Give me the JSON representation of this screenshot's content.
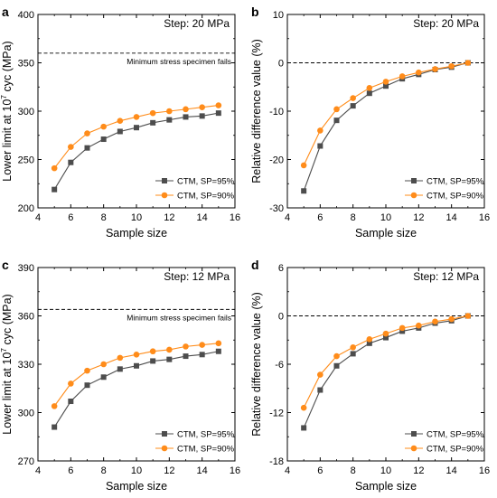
{
  "colors": {
    "series95": "#4d4d4d",
    "series90": "#ff8c1a",
    "axis": "#000000"
  },
  "chart_data": [
    {
      "panel": "a",
      "type": "line",
      "step_label": "Step: 20 MPa",
      "xlabel": "Sample size",
      "ylabel_main": "Lower limit at 10",
      "ylabel_sup": "7",
      "ylabel_tail": " cyc (MPa)",
      "xlim": [
        4,
        16
      ],
      "ylim": [
        200,
        400
      ],
      "xticks": [
        4,
        6,
        8,
        10,
        12,
        14,
        16
      ],
      "yticks": [
        200,
        250,
        300,
        350,
        400
      ],
      "reference_line": {
        "y": 360,
        "label": "Minimum stress specimen fails"
      },
      "x": [
        5,
        6,
        7,
        8,
        9,
        10,
        11,
        12,
        13,
        14,
        15
      ],
      "series": [
        {
          "name": "CTM, SP=95%",
          "marker": "square",
          "values": [
            219,
            247,
            262,
            271,
            279,
            283,
            288,
            291,
            294,
            295,
            298
          ]
        },
        {
          "name": "CTM, SP=90%",
          "marker": "circle",
          "values": [
            241,
            263,
            277,
            284,
            290,
            294,
            298,
            300,
            302,
            304,
            306
          ]
        }
      ],
      "legend": "bottom-right"
    },
    {
      "panel": "b",
      "type": "line",
      "step_label": "Step: 20 MPa",
      "xlabel": "Sample size",
      "ylabel_main": "Relative difference value (%)",
      "ylabel_sup": "",
      "ylabel_tail": "",
      "xlim": [
        4,
        16
      ],
      "ylim": [
        -30,
        10
      ],
      "xticks": [
        4,
        6,
        8,
        10,
        12,
        14,
        16
      ],
      "yticks": [
        -30,
        -20,
        -10,
        0,
        10
      ],
      "reference_line": {
        "y": 0,
        "label": ""
      },
      "x": [
        5,
        6,
        7,
        8,
        9,
        10,
        11,
        12,
        13,
        14,
        15
      ],
      "series": [
        {
          "name": "CTM, SP=95%",
          "marker": "square",
          "values": [
            -26.5,
            -17.2,
            -11.9,
            -8.9,
            -6.3,
            -4.8,
            -3.3,
            -2.4,
            -1.4,
            -0.9,
            0
          ]
        },
        {
          "name": "CTM, SP=90%",
          "marker": "circle",
          "values": [
            -21.2,
            -14.0,
            -9.6,
            -7.3,
            -5.2,
            -3.9,
            -2.8,
            -2.0,
            -1.3,
            -0.7,
            0
          ]
        }
      ],
      "legend": "bottom-right"
    },
    {
      "panel": "c",
      "type": "line",
      "step_label": "Step: 12 MPa",
      "xlabel": "Sample size",
      "ylabel_main": "Lower limit at 10",
      "ylabel_sup": "7",
      "ylabel_tail": " cyc (MPa)",
      "xlim": [
        4,
        16
      ],
      "ylim": [
        270,
        390
      ],
      "xticks": [
        4,
        6,
        8,
        10,
        12,
        14,
        16
      ],
      "yticks": [
        270,
        300,
        330,
        360,
        390
      ],
      "reference_line": {
        "y": 364,
        "label": "Minimum stress specimen fails"
      },
      "x": [
        5,
        6,
        7,
        8,
        9,
        10,
        11,
        12,
        13,
        14,
        15
      ],
      "series": [
        {
          "name": "CTM, SP=95%",
          "marker": "square",
          "values": [
            291,
            307,
            317,
            322,
            327,
            329,
            332,
            333,
            335,
            336,
            338
          ]
        },
        {
          "name": "CTM, SP=90%",
          "marker": "circle",
          "values": [
            304,
            318,
            326,
            330,
            334,
            336,
            338,
            339,
            341,
            342,
            343
          ]
        }
      ],
      "legend": "bottom-right"
    },
    {
      "panel": "d",
      "type": "line",
      "step_label": "Step: 12 MPa",
      "xlabel": "Sample size",
      "ylabel_main": "Relative difference value (%)",
      "ylabel_sup": "",
      "ylabel_tail": "",
      "xlim": [
        4,
        16
      ],
      "ylim": [
        -18,
        6
      ],
      "xticks": [
        4,
        6,
        8,
        10,
        12,
        14,
        16
      ],
      "yticks": [
        -18,
        -12,
        -6,
        0,
        6
      ],
      "reference_line": {
        "y": 0,
        "label": ""
      },
      "x": [
        5,
        6,
        7,
        8,
        9,
        10,
        11,
        12,
        13,
        14,
        15
      ],
      "series": [
        {
          "name": "CTM, SP=95%",
          "marker": "square",
          "values": [
            -13.9,
            -9.2,
            -6.2,
            -4.7,
            -3.4,
            -2.7,
            -1.9,
            -1.5,
            -0.9,
            -0.6,
            0
          ]
        },
        {
          "name": "CTM, SP=90%",
          "marker": "circle",
          "values": [
            -11.4,
            -7.3,
            -5.0,
            -3.9,
            -2.9,
            -2.2,
            -1.5,
            -1.2,
            -0.7,
            -0.4,
            0
          ]
        }
      ],
      "legend": "bottom-right"
    }
  ]
}
